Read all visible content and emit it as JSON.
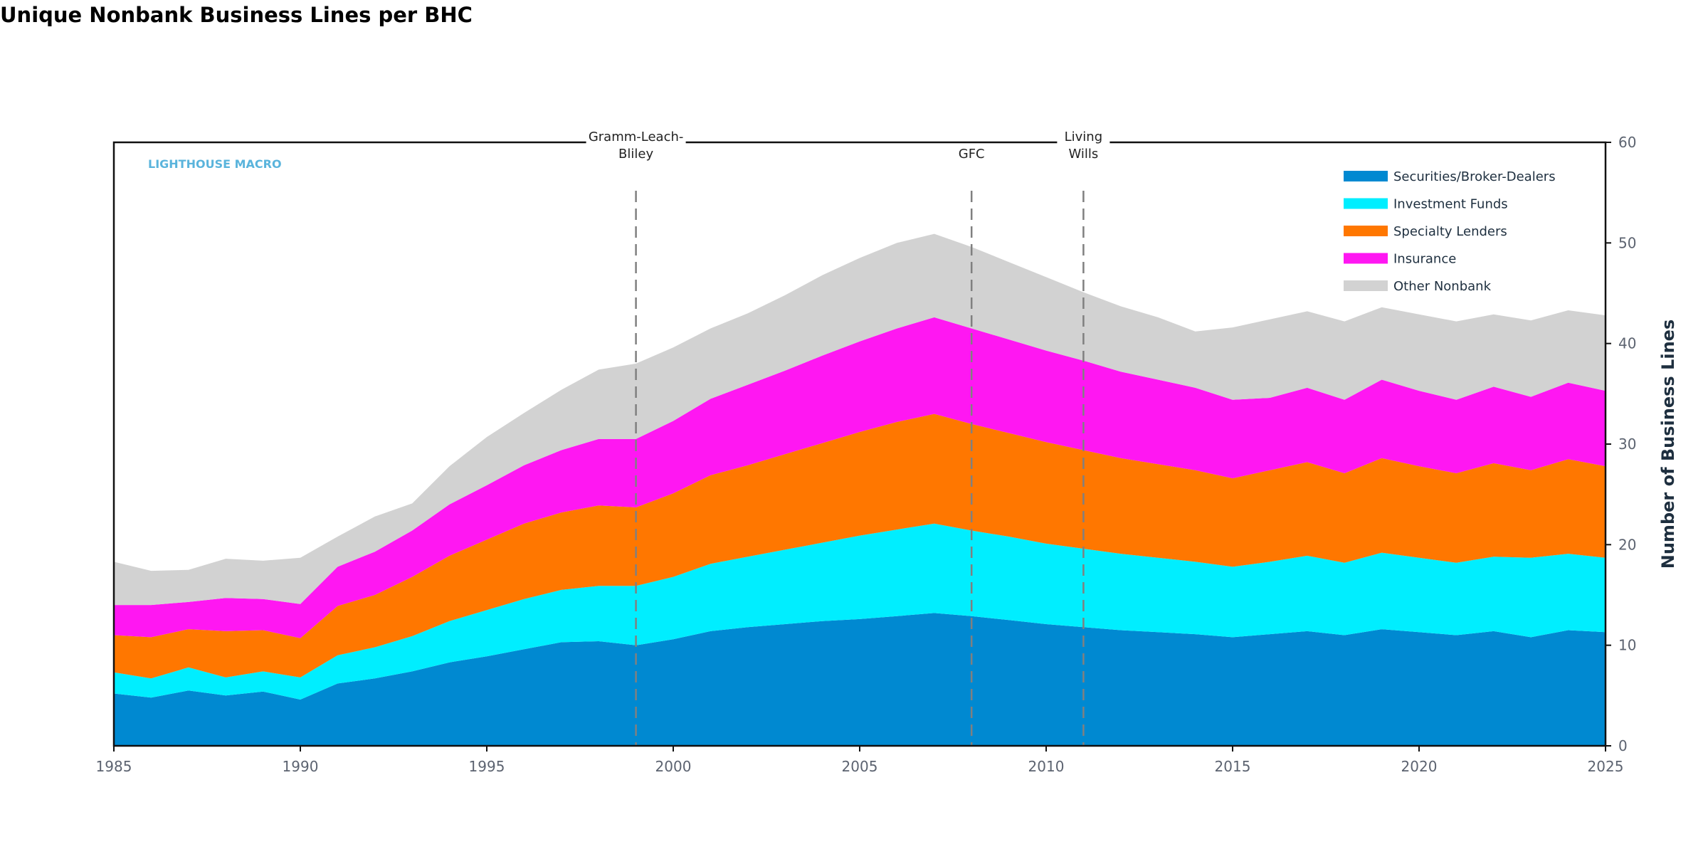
{
  "chart_data": {
    "type": "area",
    "stacked": true,
    "title": "Unique Nonbank Business Lines per BHC",
    "xlabel": "",
    "ylabel": "Number of Business Lines",
    "watermark": "LIGHTHOUSE MACRO",
    "xlim": [
      1985,
      2025
    ],
    "ylim": [
      0,
      60
    ],
    "x_ticks": [
      1985,
      1990,
      1995,
      2000,
      2005,
      2010,
      2015,
      2020,
      2025
    ],
    "y_ticks": [
      0,
      10,
      20,
      30,
      40,
      50,
      60
    ],
    "y_axis_side": "right",
    "grid": false,
    "legend_position": "top-right",
    "x": [
      1985,
      1986,
      1987,
      1988,
      1989,
      1990,
      1991,
      1992,
      1993,
      1994,
      1995,
      1996,
      1997,
      1998,
      1999,
      2000,
      2001,
      2002,
      2003,
      2004,
      2005,
      2006,
      2007,
      2008,
      2009,
      2010,
      2011,
      2012,
      2013,
      2014,
      2015,
      2016,
      2017,
      2018,
      2019,
      2020,
      2021,
      2022,
      2023,
      2024,
      2025
    ],
    "series": [
      {
        "name": "Securities/Broker-Dealers",
        "color": "#0089d1",
        "values": [
          5.2,
          4.8,
          5.5,
          5.0,
          5.4,
          4.6,
          6.2,
          6.7,
          7.4,
          8.3,
          8.9,
          9.6,
          10.3,
          10.4,
          10.0,
          10.6,
          11.4,
          11.8,
          12.1,
          12.4,
          12.6,
          12.9,
          13.2,
          12.9,
          12.5,
          12.1,
          11.8,
          11.5,
          11.3,
          11.1,
          10.8,
          11.1,
          11.4,
          11.0,
          11.6,
          11.3,
          11.0,
          11.4,
          10.8,
          11.5,
          11.3
        ]
      },
      {
        "name": "Investment Funds",
        "color": "#00eeff",
        "values": [
          2.1,
          1.9,
          2.3,
          1.8,
          2.0,
          2.2,
          2.8,
          3.1,
          3.5,
          4.1,
          4.6,
          5.0,
          5.2,
          5.5,
          5.9,
          6.2,
          6.7,
          7.0,
          7.4,
          7.8,
          8.3,
          8.6,
          8.9,
          8.5,
          8.3,
          8.0,
          7.8,
          7.6,
          7.4,
          7.2,
          7.0,
          7.2,
          7.5,
          7.2,
          7.6,
          7.4,
          7.2,
          7.4,
          7.9,
          7.6,
          7.4
        ]
      },
      {
        "name": "Specialty Lenders",
        "color": "#ff7700",
        "values": [
          3.7,
          4.1,
          3.8,
          4.6,
          4.1,
          3.9,
          4.9,
          5.2,
          5.9,
          6.5,
          7.0,
          7.5,
          7.7,
          8.0,
          7.8,
          8.3,
          8.8,
          9.1,
          9.5,
          9.9,
          10.3,
          10.7,
          10.9,
          10.6,
          10.3,
          10.1,
          9.8,
          9.5,
          9.3,
          9.1,
          8.8,
          9.1,
          9.3,
          8.9,
          9.4,
          9.1,
          8.9,
          9.3,
          8.7,
          9.4,
          9.1
        ]
      },
      {
        "name": "Insurance",
        "color": "#ff17f2",
        "values": [
          3.0,
          3.2,
          2.7,
          3.3,
          3.1,
          3.4,
          3.9,
          4.3,
          4.6,
          5.1,
          5.4,
          5.8,
          6.2,
          6.6,
          6.8,
          7.2,
          7.6,
          8.0,
          8.3,
          8.7,
          9.0,
          9.3,
          9.6,
          9.5,
          9.3,
          9.1,
          8.9,
          8.6,
          8.4,
          8.2,
          7.8,
          7.2,
          7.4,
          7.3,
          7.8,
          7.5,
          7.3,
          7.6,
          7.3,
          7.6,
          7.5
        ]
      },
      {
        "name": "Other Nonbank",
        "color": "#d2d2d2",
        "values": [
          4.3,
          3.4,
          3.2,
          3.9,
          3.8,
          4.6,
          3.0,
          3.5,
          2.7,
          3.8,
          4.8,
          5.2,
          6.0,
          6.9,
          7.5,
          7.3,
          7.0,
          7.1,
          7.5,
          8.0,
          8.3,
          8.5,
          8.3,
          8.1,
          7.7,
          7.3,
          6.8,
          6.5,
          6.2,
          5.6,
          7.2,
          7.8,
          7.6,
          7.8,
          7.2,
          7.6,
          7.8,
          7.2,
          7.6,
          7.2,
          7.5
        ]
      }
    ],
    "annotations": [
      {
        "x": 1999,
        "label": [
          "Gramm-Leach-",
          "Bliley"
        ]
      },
      {
        "x": 2008,
        "label": [
          "GFC"
        ]
      },
      {
        "x": 2011,
        "label": [
          "Living",
          "Wills"
        ]
      }
    ]
  }
}
